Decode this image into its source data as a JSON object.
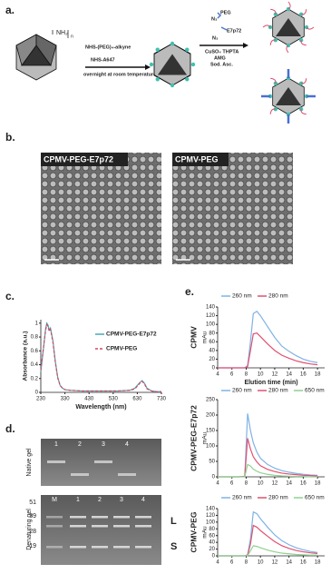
{
  "panels": {
    "a": "a.",
    "b": "b.",
    "c": "c.",
    "d": "d.",
    "e": "e."
  },
  "scheme": {
    "amine": "NH₂",
    "n": "n",
    "reagent1": "NHS-(PEG)₄-alkyne",
    "reagent2": "NHS-A647",
    "condition": "overnight at room temperature",
    "peg": "PEG",
    "n3a": "N₃",
    "e7p72": "E7p72",
    "n3b": "N₃",
    "cat1": "CuSO₄ THPTA",
    "cat2": "AMG",
    "cat3": "Sod. Asc."
  },
  "tem": {
    "left": "CPMV-PEG-E7p72",
    "right": "CPMV-PEG"
  },
  "gel": {
    "native_label": "Native gel",
    "denaturing_label": "Denaturing gel",
    "native_lanes": [
      "1",
      "2",
      "3",
      "4"
    ],
    "denaturing_lanes": [
      "M",
      "1",
      "2",
      "3",
      "4"
    ],
    "markers": [
      "51",
      "39",
      "28",
      "19"
    ],
    "bands": [
      "L",
      "S"
    ]
  },
  "chart_data": [
    {
      "type": "line",
      "ylabel": "Absorbance (a.u.)",
      "xlabel": "Wavelength (nm)",
      "x": [
        230,
        240,
        250,
        255,
        260,
        265,
        270,
        280,
        290,
        300,
        310,
        320,
        330,
        350,
        400,
        450,
        500,
        550,
        600,
        620,
        640,
        650,
        660,
        670,
        690,
        710,
        730
      ],
      "series": [
        {
          "name": "CPMV-PEG-E7p72",
          "color": "#4aa7b5",
          "dash": false,
          "values": [
            0.3,
            0.6,
            0.92,
            1.0,
            0.97,
            0.9,
            0.93,
            0.75,
            0.45,
            0.22,
            0.1,
            0.06,
            0.04,
            0.03,
            0.02,
            0.02,
            0.02,
            0.02,
            0.03,
            0.06,
            0.14,
            0.17,
            0.13,
            0.06,
            0.02,
            0.01,
            0.01
          ]
        },
        {
          "name": "CPMV-PEG",
          "color": "#d9455f",
          "dash": true,
          "values": [
            0.32,
            0.62,
            0.9,
            0.98,
            0.95,
            0.88,
            0.91,
            0.73,
            0.44,
            0.21,
            0.1,
            0.06,
            0.04,
            0.03,
            0.02,
            0.02,
            0.02,
            0.02,
            0.03,
            0.05,
            0.13,
            0.16,
            0.12,
            0.05,
            0.02,
            0.01,
            0.01
          ]
        }
      ],
      "xlim": [
        230,
        730
      ],
      "xticks": [
        230,
        330,
        430,
        530,
        630,
        730
      ],
      "ylim": [
        0,
        1.05
      ],
      "yticks": [
        0,
        0.2,
        0.4,
        0.6,
        0.8,
        1
      ]
    },
    {
      "type": "line",
      "title": "CPMV",
      "ylabel": "mAu",
      "xlabel": "Elution time (min)",
      "x": [
        4,
        6,
        7,
        7.8,
        8.2,
        8.6,
        9,
        9.5,
        10,
        11,
        12,
        13,
        14,
        15,
        16,
        17,
        18
      ],
      "series": [
        {
          "name": "260 nm",
          "color": "#7fb2e5",
          "values": [
            0,
            0,
            0,
            0,
            5,
            60,
            125,
            130,
            120,
            95,
            70,
            50,
            38,
            28,
            20,
            15,
            12
          ]
        },
        {
          "name": "280 nm",
          "color": "#e05070",
          "values": [
            0,
            0,
            0,
            0,
            3,
            40,
            78,
            80,
            72,
            55,
            40,
            29,
            22,
            16,
            12,
            9,
            7
          ]
        }
      ],
      "xlim": [
        4,
        19
      ],
      "xticks": [
        4,
        6,
        8,
        10,
        12,
        14,
        16,
        18
      ],
      "ylim": [
        0,
        140
      ],
      "yticks": [
        0,
        20,
        40,
        60,
        80,
        100,
        120,
        140
      ]
    },
    {
      "type": "line",
      "title": "CPMV-PEG-E7p72",
      "ylabel": "mAu",
      "x": [
        4,
        6,
        7,
        7.8,
        8.2,
        8.6,
        9,
        9.5,
        10,
        11,
        12,
        13,
        14,
        15,
        16,
        17,
        18
      ],
      "series": [
        {
          "name": "260 nm",
          "color": "#7fb2e5",
          "values": [
            0,
            0,
            0,
            2,
            205,
            150,
            110,
            80,
            60,
            40,
            28,
            20,
            15,
            11,
            8,
            6,
            5
          ]
        },
        {
          "name": "280 nm",
          "color": "#e05070",
          "values": [
            0,
            0,
            0,
            1,
            125,
            90,
            65,
            48,
            36,
            24,
            17,
            12,
            9,
            7,
            5,
            4,
            3
          ]
        },
        {
          "name": "650 nm",
          "color": "#8fd18f",
          "values": [
            0,
            0,
            0,
            0,
            40,
            35,
            25,
            18,
            13,
            8,
            5,
            3,
            2,
            1,
            1,
            0,
            0
          ]
        }
      ],
      "xlim": [
        4,
        19
      ],
      "xticks": [
        4,
        6,
        8,
        10,
        12,
        14,
        16,
        18
      ],
      "ylim": [
        0,
        250
      ],
      "yticks": [
        0,
        50,
        100,
        150,
        200,
        250
      ]
    },
    {
      "type": "line",
      "title": "CPMV-PEG",
      "ylabel": "mAu",
      "x": [
        4,
        6,
        7,
        7.8,
        8.2,
        8.6,
        9,
        9.5,
        10,
        11,
        12,
        13,
        14,
        15,
        16,
        17,
        18
      ],
      "series": [
        {
          "name": "260 nm",
          "color": "#7fb2e5",
          "values": [
            0,
            0,
            0,
            0,
            3,
            50,
            130,
            125,
            110,
            85,
            62,
            45,
            33,
            24,
            18,
            13,
            10
          ]
        },
        {
          "name": "280 nm",
          "color": "#e05070",
          "values": [
            0,
            0,
            0,
            0,
            2,
            35,
            90,
            85,
            75,
            58,
            42,
            30,
            22,
            16,
            12,
            9,
            7
          ]
        },
        {
          "name": "650 nm",
          "color": "#8fd18f",
          "values": [
            0,
            0,
            0,
            0,
            1,
            15,
            30,
            28,
            24,
            17,
            12,
            8,
            6,
            4,
            3,
            2,
            2
          ]
        }
      ],
      "xlim": [
        4,
        19
      ],
      "xticks": [
        4,
        6,
        8,
        10,
        12,
        14,
        16,
        18
      ],
      "ylim": [
        0,
        140
      ],
      "yticks": [
        0,
        20,
        40,
        60,
        80,
        100,
        120,
        140
      ]
    }
  ]
}
